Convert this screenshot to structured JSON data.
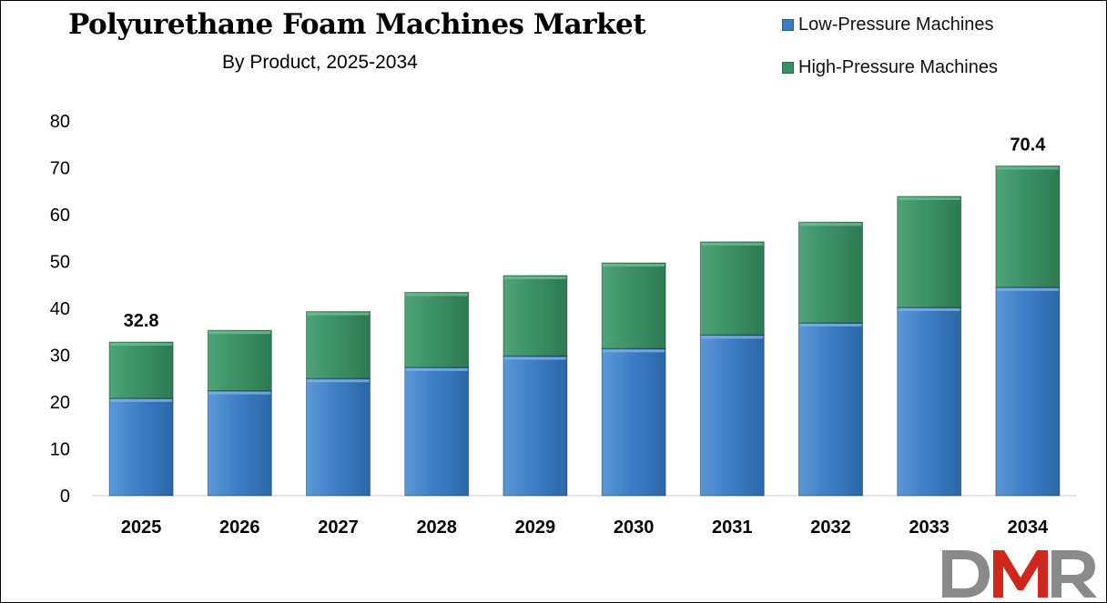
{
  "chart_data": {
    "type": "bar",
    "stacked": true,
    "title": "Polyurethane Foam Machines Market",
    "subtitle": "By Product, 2025-2034",
    "categories": [
      "2025",
      "2026",
      "2027",
      "2028",
      "2029",
      "2030",
      "2031",
      "2032",
      "2033",
      "2034"
    ],
    "series": [
      {
        "name": "Low-Pressure Machines",
        "color": "#3b7dc4",
        "values": [
          20.8,
          22.4,
          25.0,
          27.4,
          29.8,
          31.4,
          34.3,
          36.9,
          40.2,
          44.5
        ]
      },
      {
        "name": "High-Pressure Machines",
        "color": "#3a8f63",
        "values": [
          12.0,
          12.9,
          14.3,
          16.0,
          17.2,
          18.3,
          19.9,
          21.5,
          23.7,
          25.9
        ]
      }
    ],
    "totals_labels": [
      {
        "category": "2025",
        "text": "32.8"
      },
      {
        "category": "2034",
        "text": "70.4"
      }
    ],
    "ylim": [
      0,
      80
    ],
    "yticks": [
      0,
      10,
      20,
      30,
      40,
      50,
      60,
      70,
      80
    ],
    "legend_position": "top-right",
    "grid": false
  },
  "brand": {
    "logo_text": "DMR"
  }
}
